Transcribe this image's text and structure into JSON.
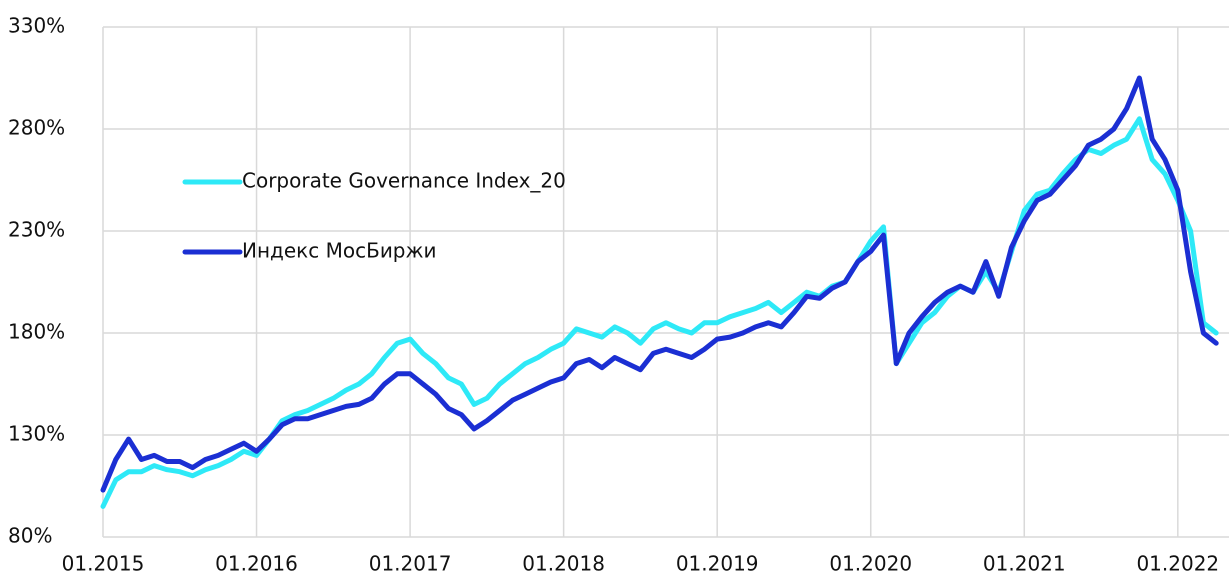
{
  "chart_data": {
    "type": "line",
    "x": [
      "2015-01",
      "2015-02",
      "2015-03",
      "2015-04",
      "2015-05",
      "2015-06",
      "2015-07",
      "2015-08",
      "2015-09",
      "2015-10",
      "2015-11",
      "2015-12",
      "2016-01",
      "2016-02",
      "2016-03",
      "2016-04",
      "2016-05",
      "2016-06",
      "2016-07",
      "2016-08",
      "2016-09",
      "2016-10",
      "2016-11",
      "2016-12",
      "2017-01",
      "2017-02",
      "2017-03",
      "2017-04",
      "2017-05",
      "2017-06",
      "2017-07",
      "2017-08",
      "2017-09",
      "2017-10",
      "2017-11",
      "2017-12",
      "2018-01",
      "2018-02",
      "2018-03",
      "2018-04",
      "2018-05",
      "2018-06",
      "2018-07",
      "2018-08",
      "2018-09",
      "2018-10",
      "2018-11",
      "2018-12",
      "2019-01",
      "2019-02",
      "2019-03",
      "2019-04",
      "2019-05",
      "2019-06",
      "2019-07",
      "2019-08",
      "2019-09",
      "2019-10",
      "2019-11",
      "2019-12",
      "2020-01",
      "2020-02",
      "2020-03",
      "2020-04",
      "2020-05",
      "2020-06",
      "2020-07",
      "2020-08",
      "2020-09",
      "2020-10",
      "2020-11",
      "2020-12",
      "2021-01",
      "2021-02",
      "2021-03",
      "2021-04",
      "2021-05",
      "2021-06",
      "2021-07",
      "2021-08",
      "2021-09",
      "2021-10",
      "2021-11",
      "2021-12",
      "2022-01",
      "2022-02",
      "2022-03",
      "2022-04"
    ],
    "series": [
      {
        "name": "Corporate Governance Index_20",
        "color": "#2ee9f7",
        "values": [
          95,
          108,
          112,
          112,
          115,
          113,
          112,
          110,
          113,
          115,
          118,
          122,
          120,
          128,
          137,
          140,
          142,
          145,
          148,
          152,
          155,
          160,
          168,
          175,
          177,
          170,
          165,
          158,
          155,
          145,
          148,
          155,
          160,
          165,
          168,
          172,
          175,
          182,
          180,
          178,
          183,
          180,
          175,
          182,
          185,
          182,
          180,
          185,
          185,
          188,
          190,
          192,
          195,
          190,
          195,
          200,
          198,
          203,
          205,
          215,
          225,
          232,
          165,
          175,
          185,
          190,
          198,
          203,
          200,
          210,
          200,
          220,
          240,
          248,
          250,
          258,
          265,
          270,
          268,
          272,
          275,
          285,
          265,
          258,
          245,
          230,
          185,
          180
        ]
      },
      {
        "name": "Индекс МосБиржи",
        "color": "#1b2fd3",
        "values": [
          103,
          118,
          128,
          118,
          120,
          117,
          117,
          114,
          118,
          120,
          123,
          126,
          122,
          128,
          135,
          138,
          138,
          140,
          142,
          144,
          145,
          148,
          155,
          160,
          160,
          155,
          150,
          143,
          140,
          133,
          137,
          142,
          147,
          150,
          153,
          156,
          158,
          165,
          167,
          163,
          168,
          165,
          162,
          170,
          172,
          170,
          168,
          172,
          177,
          178,
          180,
          183,
          185,
          183,
          190,
          198,
          197,
          202,
          205,
          215,
          220,
          228,
          165,
          180,
          188,
          195,
          200,
          203,
          200,
          215,
          198,
          222,
          235,
          245,
          248,
          255,
          262,
          272,
          275,
          280,
          290,
          305,
          275,
          265,
          250,
          210,
          180,
          175
        ]
      }
    ],
    "xlim": [
      "2015-01",
      "2022-05"
    ],
    "xticks": [
      {
        "value": "2015-01",
        "label": "01.2015"
      },
      {
        "value": "2016-01",
        "label": "01.2016"
      },
      {
        "value": "2017-01",
        "label": "01.2017"
      },
      {
        "value": "2018-01",
        "label": "01.2018"
      },
      {
        "value": "2019-01",
        "label": "01.2019"
      },
      {
        "value": "2020-01",
        "label": "01.2020"
      },
      {
        "value": "2021-01",
        "label": "01.2021"
      },
      {
        "value": "2022-01",
        "label": "01.2022"
      }
    ],
    "ylim": [
      80,
      330
    ],
    "yticks": [
      {
        "value": 80,
        "label": "80%"
      },
      {
        "value": 130,
        "label": "130%"
      },
      {
        "value": 180,
        "label": "180%"
      },
      {
        "value": 230,
        "label": "230%"
      },
      {
        "value": 280,
        "label": "280%"
      },
      {
        "value": 330,
        "label": "330%"
      }
    ],
    "grid": true,
    "legend": "upper left"
  }
}
